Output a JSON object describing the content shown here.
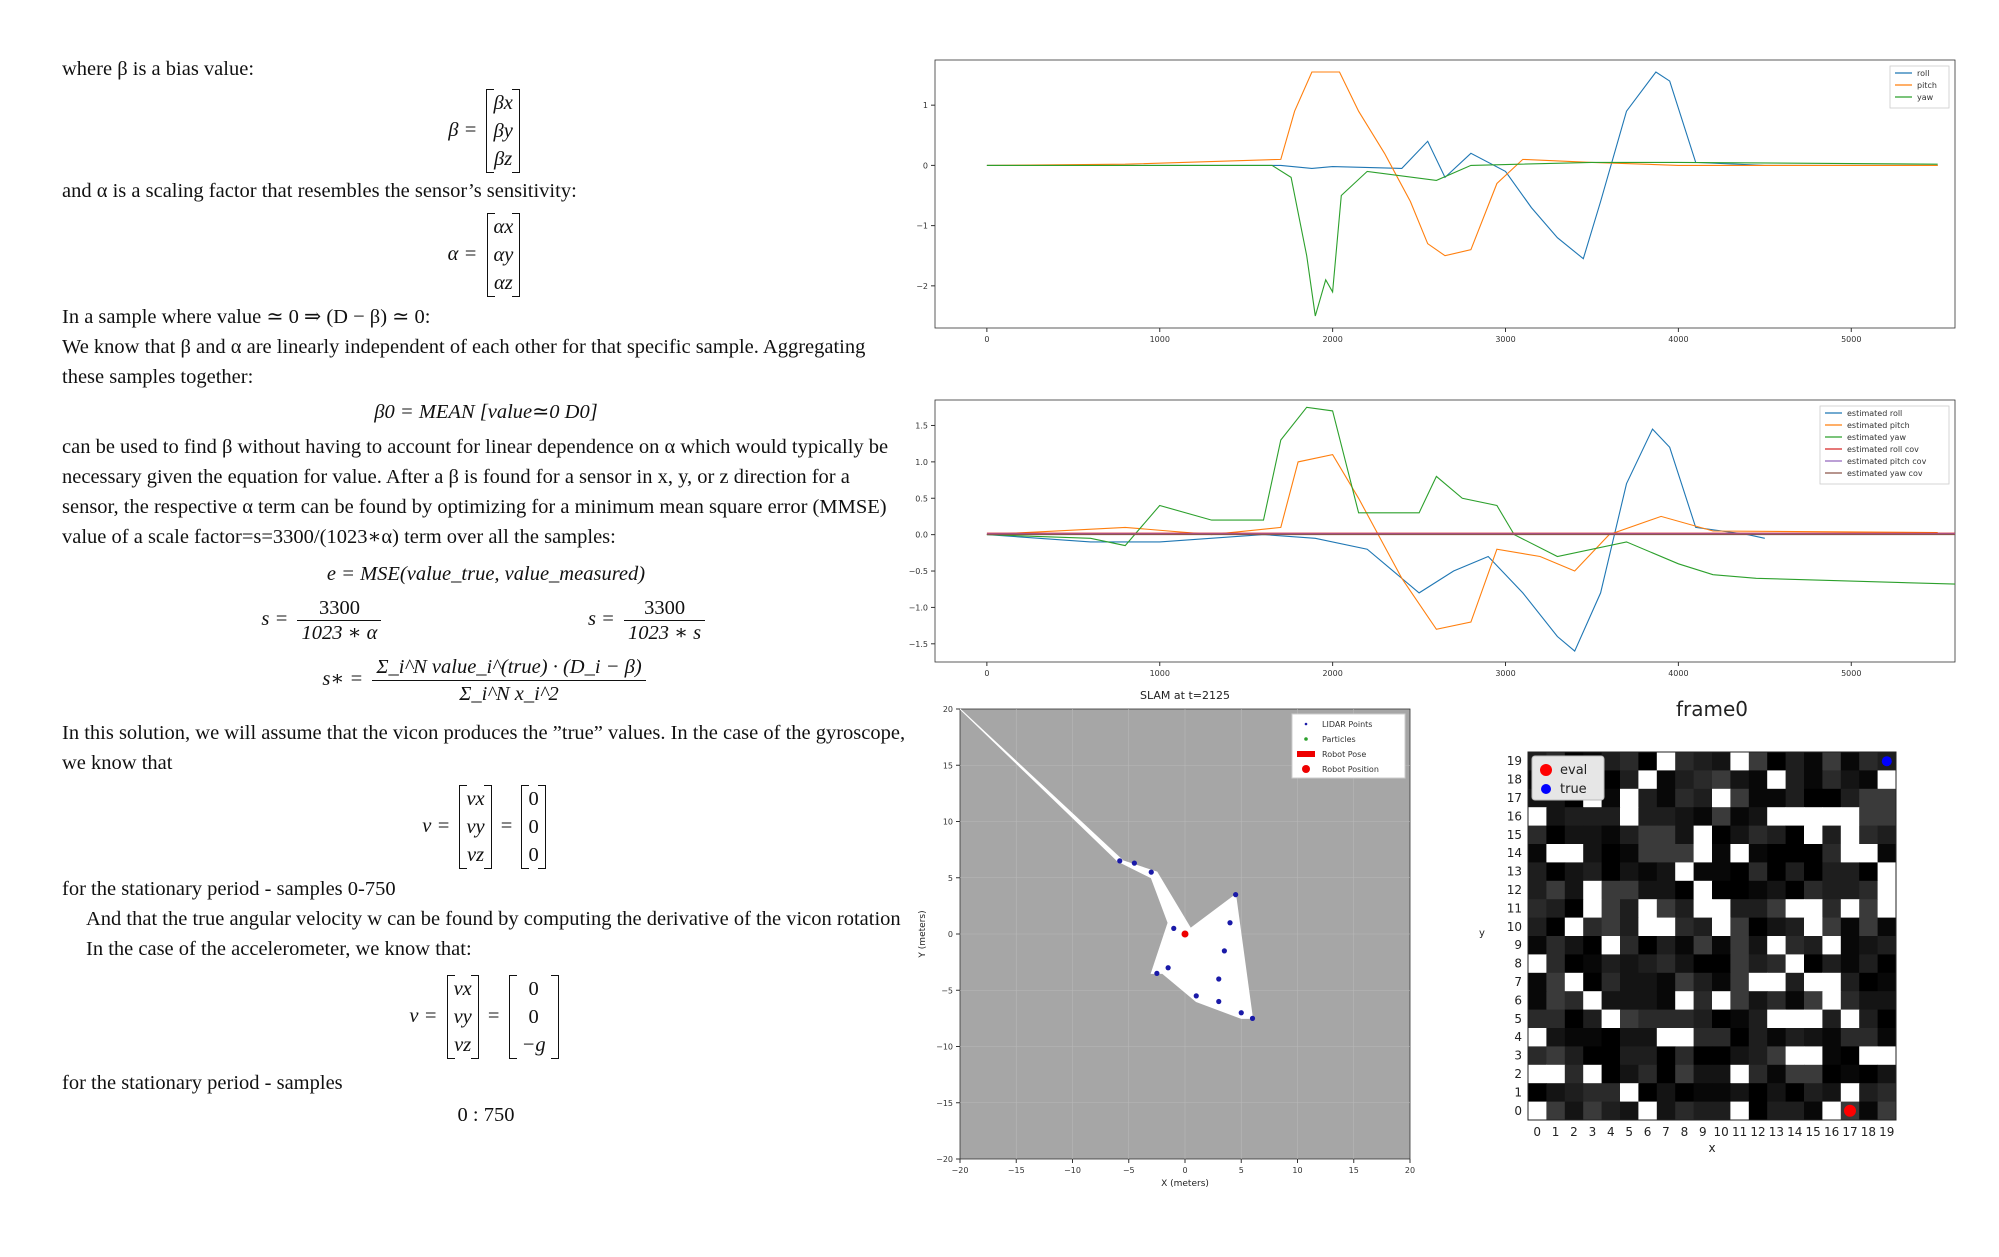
{
  "paper": {
    "line1": "where β is a bias value:",
    "beta_lhs": "β =",
    "beta_vec": [
      "βx",
      "βy",
      "βz"
    ],
    "line2": "and α is a scaling factor that resembles the sensor’s sensitivity:",
    "alpha_lhs": "α =",
    "alpha_vec": [
      "αx",
      "αy",
      "αz"
    ],
    "line3": "In a sample where value ≃ 0 ⇒ (D − β) ≃ 0:",
    "line4": "We know that β and α are linearly independent of each other for that specific sample. Aggregating these samples together:",
    "eq_beta0": "β0 = MEAN [value≃0 D0]",
    "line5": "can be used to find β without having to account for linear dependence on α which would typically be necessary given the equation for value. After a β is found for a sensor in x, y, or z direction for a sensor, the respective α term can be found by optimizing for a minimum mean square error (MMSE) value of a scale factor=s=3300/(1023∗α) term over all the samples:",
    "eq_mse": "e = MSE(value_true, value_measured)",
    "eq_s1_lhs": "s =",
    "eq_s1_num": "3300",
    "eq_s1_den": "1023 ∗ α",
    "eq_s2_lhs": "s =",
    "eq_s2_num": "3300",
    "eq_s2_den": "1023 ∗ s",
    "eq_sstar_lhs": "s∗ =",
    "eq_sstar_num": "Σ_i^N value_i^(true) · (D_i − β)",
    "eq_sstar_den": "Σ_i^N x_i^2",
    "line6": "In this solution, we will assume that the vicon produces the ”true” values. In the case of the gyroscope, we know that",
    "v_lhs": "v =",
    "v_vec": [
      "vx",
      "vy",
      "vz"
    ],
    "v_eq": "=",
    "v_zero": [
      "0",
      "0",
      "0"
    ],
    "line7": "for the stationary period - samples 0-750",
    "line8": "And that the true angular velocity w can be found by computing the derivative of the vicon rotation",
    "line9": "In the case of the accelerometer, we know that:",
    "acc_vals": [
      "0",
      "0",
      "−g"
    ],
    "line10": "for the stationary period - samples",
    "line11": "0 : 750"
  },
  "chart_data": [
    {
      "type": "line",
      "xlim": [
        -300,
        5600
      ],
      "ylim": [
        -2.7,
        1.75
      ],
      "xticks": [
        "0",
        "1000",
        "2000",
        "3000",
        "4000",
        "5000"
      ],
      "yticks": [
        "1",
        "0",
        "−1",
        "−2"
      ],
      "legend_position": "top-right",
      "series": [
        {
          "name": "roll",
          "color": "#1f77b4",
          "points": [
            [
              0,
              0
            ],
            [
              1700,
              0
            ],
            [
              1880,
              -0.05
            ],
            [
              2000,
              -0.02
            ],
            [
              2400,
              -0.05
            ],
            [
              2550,
              0.4
            ],
            [
              2650,
              -0.2
            ],
            [
              2800,
              0.2
            ],
            [
              3000,
              -0.1
            ],
            [
              3150,
              -0.7
            ],
            [
              3300,
              -1.2
            ],
            [
              3450,
              -1.55
            ],
            [
              3550,
              -0.6
            ],
            [
              3700,
              0.9
            ],
            [
              3870,
              1.55
            ],
            [
              3950,
              1.4
            ],
            [
              4100,
              0.05
            ],
            [
              4500,
              0
            ],
            [
              5500,
              0
            ]
          ]
        },
        {
          "name": "pitch",
          "color": "#ff7f0e",
          "points": [
            [
              0,
              0
            ],
            [
              800,
              0.02
            ],
            [
              1700,
              0.1
            ],
            [
              1780,
              0.9
            ],
            [
              1880,
              1.55
            ],
            [
              2040,
              1.55
            ],
            [
              2150,
              0.9
            ],
            [
              2300,
              0.2
            ],
            [
              2450,
              -0.6
            ],
            [
              2550,
              -1.3
            ],
            [
              2650,
              -1.5
            ],
            [
              2800,
              -1.4
            ],
            [
              2950,
              -0.3
            ],
            [
              3100,
              0.1
            ],
            [
              3500,
              0.05
            ],
            [
              4000,
              0
            ],
            [
              5500,
              0
            ]
          ]
        },
        {
          "name": "yaw",
          "color": "#2ca02c",
          "points": [
            [
              0,
              0
            ],
            [
              1650,
              0
            ],
            [
              1760,
              -0.2
            ],
            [
              1850,
              -1.5
            ],
            [
              1900,
              -2.5
            ],
            [
              1960,
              -1.9
            ],
            [
              2000,
              -2.1
            ],
            [
              2050,
              -0.5
            ],
            [
              2200,
              -0.1
            ],
            [
              2600,
              -0.25
            ],
            [
              2800,
              0
            ],
            [
              3500,
              0.05
            ],
            [
              4000,
              0.05
            ],
            [
              5500,
              0.02
            ]
          ]
        }
      ]
    },
    {
      "type": "line",
      "xlim": [
        -300,
        5600
      ],
      "ylim": [
        -1.75,
        1.85
      ],
      "xticks": [
        "0",
        "1000",
        "2000",
        "3000",
        "4000",
        "5000"
      ],
      "yticks": [
        "1.5",
        "1.0",
        "0.5",
        "0.0",
        "−0.5",
        "−1.0",
        "−1.5"
      ],
      "legend_position": "top-right",
      "series": [
        {
          "name": "estimated roll",
          "color": "#1f77b4",
          "points": [
            [
              0,
              0
            ],
            [
              600,
              -0.1
            ],
            [
              1000,
              -0.1
            ],
            [
              1600,
              0
            ],
            [
              1900,
              -0.05
            ],
            [
              2200,
              -0.2
            ],
            [
              2500,
              -0.8
            ],
            [
              2700,
              -0.5
            ],
            [
              2900,
              -0.3
            ],
            [
              3100,
              -0.8
            ],
            [
              3300,
              -1.4
            ],
            [
              3400,
              -1.6
            ],
            [
              3550,
              -0.8
            ],
            [
              3700,
              0.7
            ],
            [
              3850,
              1.45
            ],
            [
              3950,
              1.2
            ],
            [
              4100,
              0.1
            ],
            [
              4400,
              0
            ],
            [
              4500,
              -0.05
            ]
          ]
        },
        {
          "name": "estimated pitch",
          "color": "#ff7f0e",
          "points": [
            [
              0,
              0
            ],
            [
              800,
              0.1
            ],
            [
              1300,
              0
            ],
            [
              1700,
              0.1
            ],
            [
              1800,
              1.0
            ],
            [
              2000,
              1.1
            ],
            [
              2150,
              0.5
            ],
            [
              2400,
              -0.6
            ],
            [
              2600,
              -1.3
            ],
            [
              2800,
              -1.2
            ],
            [
              2950,
              -0.2
            ],
            [
              3200,
              -0.3
            ],
            [
              3400,
              -0.5
            ],
            [
              3600,
              0
            ],
            [
              3900,
              0.25
            ],
            [
              4200,
              0.05
            ],
            [
              5500,
              0.03
            ]
          ]
        },
        {
          "name": "estimated yaw",
          "color": "#2ca02c",
          "points": [
            [
              0,
              0
            ],
            [
              600,
              -0.05
            ],
            [
              800,
              -0.15
            ],
            [
              1000,
              0.4
            ],
            [
              1300,
              0.2
            ],
            [
              1600,
              0.2
            ],
            [
              1700,
              1.3
            ],
            [
              1850,
              1.75
            ],
            [
              2000,
              1.7
            ],
            [
              2150,
              0.3
            ],
            [
              2500,
              0.3
            ],
            [
              2600,
              0.8
            ],
            [
              2750,
              0.5
            ],
            [
              2950,
              0.4
            ],
            [
              3050,
              0
            ],
            [
              3300,
              -0.3
            ],
            [
              3700,
              -0.1
            ],
            [
              4000,
              -0.4
            ],
            [
              4200,
              -0.55
            ],
            [
              4450,
              -0.6
            ],
            [
              5600,
              -0.68
            ]
          ]
        },
        {
          "name": "estimated roll cov",
          "color": "#d62728",
          "points": [
            [
              0,
              0.02
            ],
            [
              5600,
              0.02
            ]
          ]
        },
        {
          "name": "estimated pitch cov",
          "color": "#9467bd",
          "points": [
            [
              0,
              0.01
            ],
            [
              5600,
              0.01
            ]
          ]
        },
        {
          "name": "estimated yaw cov",
          "color": "#8c564b",
          "points": [
            [
              0,
              0.0
            ],
            [
              5600,
              0.0
            ]
          ]
        }
      ]
    },
    {
      "type": "scatter",
      "title": "SLAM at t=2125",
      "xlabel": "X (meters)",
      "ylabel": "Y (meters)",
      "xlim": [
        -20,
        20
      ],
      "ylim": [
        -20,
        20
      ],
      "xticks": [
        "−20",
        "−15",
        "−10",
        "−5",
        "0",
        "5",
        "10",
        "15",
        "20"
      ],
      "yticks": [
        "20",
        "15",
        "10",
        "5",
        "0",
        "−5",
        "−10",
        "−15",
        "−20"
      ],
      "legend_position": "top-right",
      "legend": [
        "LIDAR Points",
        "Particles",
        "Robot Pose",
        "Robot Position"
      ],
      "robot_position": [
        0,
        0
      ],
      "free_region": [
        [
          -20,
          20
        ],
        [
          -6,
          6.5
        ],
        [
          -3,
          5
        ],
        [
          -1.5,
          1
        ],
        [
          -3,
          -3.5
        ],
        [
          -2,
          -3.5
        ],
        [
          1,
          -6
        ],
        [
          5,
          -7.5
        ],
        [
          6,
          -7.5
        ],
        [
          4.5,
          3.5
        ],
        [
          0.5,
          0.5
        ],
        [
          -2.5,
          5.5
        ],
        [
          -5.5,
          6.5
        ]
      ],
      "lidar_points": [
        [
          -5.8,
          6.5
        ],
        [
          -4.5,
          6.3
        ],
        [
          -3,
          5.5
        ],
        [
          4.5,
          3.5
        ],
        [
          4,
          1
        ],
        [
          3.5,
          -1.5
        ],
        [
          3,
          -4
        ],
        [
          1,
          -5.5
        ],
        [
          3,
          -6
        ],
        [
          5,
          -7
        ],
        [
          6,
          -7.5
        ],
        [
          -2.5,
          -3.5
        ],
        [
          -1.5,
          -3
        ],
        [
          -1,
          0.5
        ]
      ]
    },
    {
      "type": "heatmap",
      "title": "frame0",
      "xlabel": "x",
      "ylabel": "y",
      "xticks": [
        "0",
        "1",
        "2",
        "3",
        "4",
        "5",
        "6",
        "7",
        "8",
        "9",
        "10",
        "11",
        "12",
        "13",
        "14",
        "15",
        "16",
        "17",
        "18",
        "19"
      ],
      "yticks": [
        "19",
        "18",
        "17",
        "16",
        "15",
        "14",
        "13",
        "12",
        "11",
        "10",
        "9",
        "8",
        "7",
        "6",
        "5",
        "4",
        "3",
        "2",
        "1",
        "0"
      ],
      "legend": [
        "eval",
        "true"
      ],
      "eval_point": [
        17,
        0
      ],
      "true_point": [
        19,
        19
      ]
    }
  ]
}
